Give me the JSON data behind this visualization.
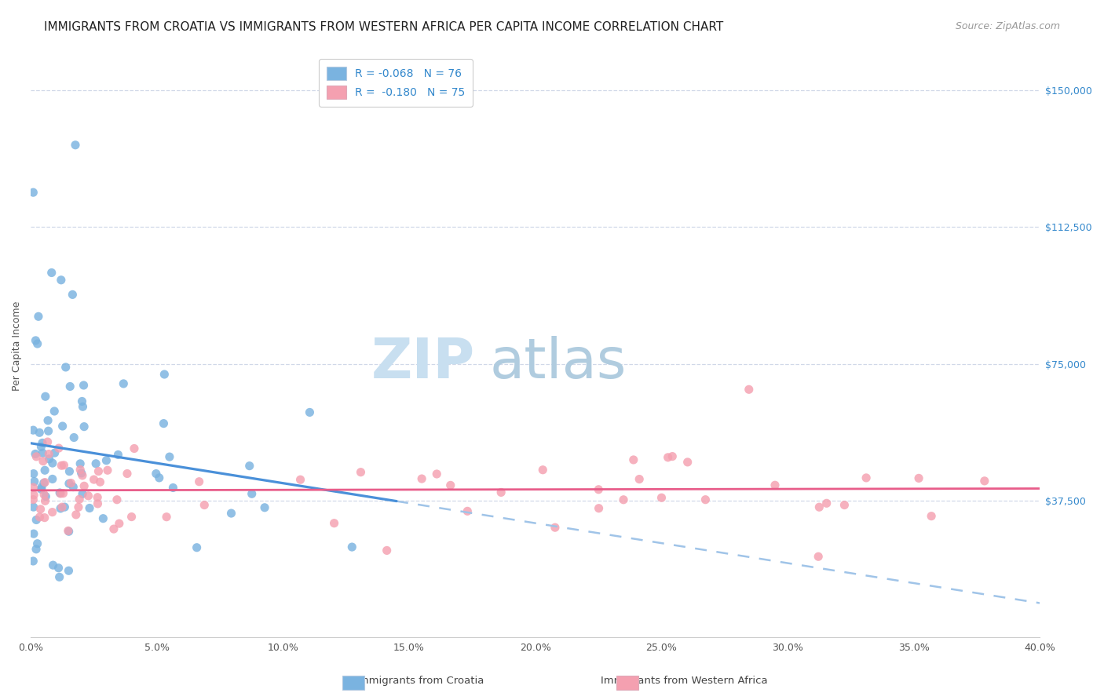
{
  "title": "IMMIGRANTS FROM CROATIA VS IMMIGRANTS FROM WESTERN AFRICA PER CAPITA INCOME CORRELATION CHART",
  "source": "Source: ZipAtlas.com",
  "ylabel": "Per Capita Income",
  "ytick_labels": [
    "$37,500",
    "$75,000",
    "$112,500",
    "$150,000"
  ],
  "ytick_values": [
    37500,
    75000,
    112500,
    150000
  ],
  "ymin": 0,
  "ymax": 160000,
  "xmin": 0.0,
  "xmax": 0.4,
  "croatia_color": "#7ab3e0",
  "w_africa_color": "#f4a0b0",
  "trend_croatia_color": "#4a90d9",
  "trend_w_africa_color": "#e85d8a",
  "dashed_color": "#a0c4e8",
  "watermark_zip": "ZIP",
  "watermark_atlas": "atlas",
  "background_color": "#ffffff",
  "grid_color": "#d0d8e8",
  "title_fontsize": 11,
  "source_fontsize": 9,
  "axis_label_fontsize": 9,
  "tick_fontsize": 9,
  "legend_fontsize": 10,
  "watermark_fontsize_zip": 52,
  "watermark_fontsize_atlas": 52,
  "watermark_color": "#d0e8f8",
  "r_croatia": "-0.068",
  "n_croatia": "76",
  "r_w_africa": "-0.180",
  "n_w_africa": "75",
  "legend_label_croatia": "Immigrants from Croatia",
  "legend_label_w_africa": "Immigrants from Western Africa"
}
